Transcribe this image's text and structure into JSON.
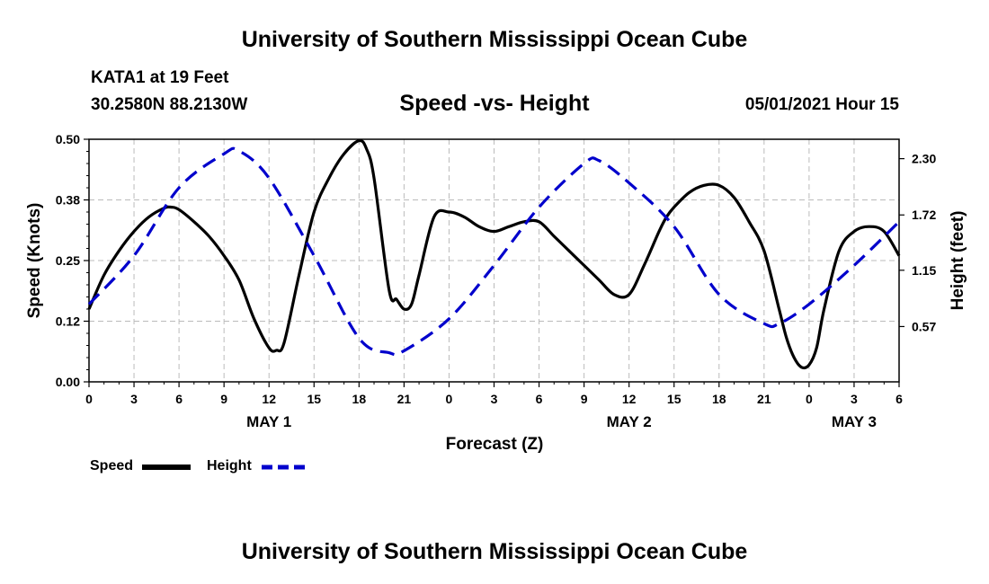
{
  "header": {
    "title_top": "University of Southern Mississippi Ocean Cube",
    "station": "KATA1 at 19 Feet",
    "coords": "30.2580N  88.2130W",
    "subtitle": "Speed -vs- Height",
    "datetime": "05/01/2021 Hour 15"
  },
  "footer": {
    "title_bottom": "University of Southern Mississippi Ocean Cube"
  },
  "legend": {
    "speed_label": "Speed",
    "height_label": "Height"
  },
  "colors": {
    "speed": "#000000",
    "height": "#0000cc",
    "grid": "#bbbbbb"
  },
  "chart_data": {
    "type": "line",
    "title": "Speed -vs- Height",
    "xlabel": "Forecast (Z)",
    "ylabel_left": "Speed (Knots)",
    "ylabel_right": "Height (feet)",
    "x_ticks": [
      0,
      3,
      6,
      9,
      12,
      15,
      18,
      21,
      24,
      27,
      30,
      33,
      36,
      39,
      42,
      45,
      48,
      51,
      54
    ],
    "x_tick_labels": [
      "0",
      "3",
      "6",
      "9",
      "12",
      "15",
      "18",
      "21",
      "0",
      "3",
      "6",
      "9",
      "12",
      "15",
      "18",
      "21",
      "0",
      "3",
      "6"
    ],
    "x_range": [
      0,
      54
    ],
    "day_labels": [
      {
        "label": "MAY 1",
        "x": 12
      },
      {
        "label": "MAY 2",
        "x": 36
      },
      {
        "label": "MAY 3",
        "x": 51
      }
    ],
    "y_left": {
      "range": [
        0,
        0.5
      ],
      "ticks": [
        0.0,
        0.125,
        0.25,
        0.375,
        0.5
      ],
      "tick_labels": [
        "0.00",
        "0.12",
        "0.25",
        "0.38",
        "0.50"
      ]
    },
    "y_right": {
      "range": [
        0.0,
        2.5
      ],
      "ticks": [
        0.57,
        1.15,
        1.72,
        2.3
      ],
      "tick_labels": [
        "0.57",
        "1.15",
        "1.72",
        "2.30"
      ]
    },
    "series": [
      {
        "name": "Speed",
        "axis": "left",
        "style": "solid",
        "x": [
          0,
          1,
          2,
          3,
          4,
          5,
          5.5,
          6,
          7,
          8,
          9,
          10,
          11,
          12,
          12.5,
          13,
          14,
          15,
          16,
          17,
          18,
          18.5,
          19,
          20,
          20.5,
          21,
          21.5,
          22,
          23,
          24,
          25,
          26,
          27,
          28,
          29,
          30,
          31,
          32,
          33,
          34,
          35,
          36,
          37,
          38,
          38.5,
          39,
          40,
          41,
          42,
          43,
          44,
          45,
          46,
          46.5,
          47,
          47.5,
          48,
          48.5,
          49,
          50,
          51,
          52,
          53,
          54
        ],
        "values": [
          0.15,
          0.22,
          0.27,
          0.31,
          0.34,
          0.358,
          0.36,
          0.355,
          0.33,
          0.3,
          0.26,
          0.21,
          0.13,
          0.07,
          0.065,
          0.08,
          0.22,
          0.35,
          0.42,
          0.47,
          0.497,
          0.48,
          0.42,
          0.19,
          0.17,
          0.15,
          0.16,
          0.22,
          0.34,
          0.35,
          0.34,
          0.32,
          0.31,
          0.32,
          0.33,
          0.33,
          0.3,
          0.27,
          0.24,
          0.21,
          0.18,
          0.18,
          0.24,
          0.31,
          0.34,
          0.36,
          0.39,
          0.405,
          0.405,
          0.38,
          0.33,
          0.27,
          0.15,
          0.09,
          0.05,
          0.03,
          0.035,
          0.07,
          0.15,
          0.27,
          0.31,
          0.32,
          0.31,
          0.26
        ]
      },
      {
        "name": "Height",
        "axis": "right",
        "style": "dashed",
        "x": [
          0,
          3,
          6,
          9,
          10,
          12,
          15,
          18,
          20,
          21,
          24,
          27,
          30,
          33,
          34,
          36,
          39,
          42,
          45,
          46,
          48,
          51,
          54
        ],
        "values": [
          0.8,
          1.3,
          2.0,
          2.35,
          2.38,
          2.1,
          1.3,
          0.45,
          0.3,
          0.32,
          0.65,
          1.2,
          1.8,
          2.25,
          2.28,
          2.05,
          1.6,
          0.9,
          0.6,
          0.6,
          0.8,
          1.2,
          1.65
        ]
      }
    ]
  }
}
